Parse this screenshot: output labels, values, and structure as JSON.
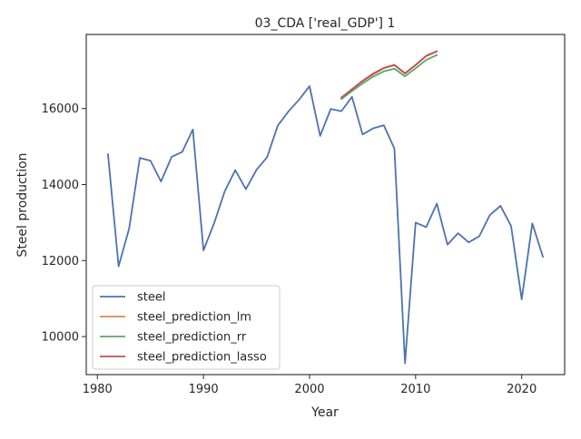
{
  "chart_data": {
    "type": "line",
    "title": "03_CDA ['real_GDP'] 1",
    "xlabel": "Year",
    "ylabel": "Steel production",
    "xlim": [
      1978.95,
      2024.05
    ],
    "ylim": [
      9000,
      17950
    ],
    "xticks": [
      1980,
      1990,
      2000,
      2010,
      2020
    ],
    "yticks": [
      10000,
      12000,
      14000,
      16000
    ],
    "grid": false,
    "legend_position": "lower-left",
    "series": [
      {
        "name": "steel",
        "color": "#4c72b0",
        "x": [
          1981,
          1982,
          1983,
          1984,
          1985,
          1986,
          1987,
          1988,
          1989,
          1990,
          1991,
          1992,
          1993,
          1994,
          1995,
          1996,
          1997,
          1998,
          1999,
          2000,
          2001,
          2002,
          2003,
          2004,
          2005,
          2006,
          2007,
          2008,
          2009,
          2010,
          2011,
          2012,
          2013,
          2014,
          2015,
          2016,
          2017,
          2018,
          2019,
          2020,
          2021,
          2022
        ],
        "y": [
          14800,
          11850,
          12850,
          14700,
          14630,
          14080,
          14730,
          14860,
          15450,
          12270,
          12980,
          13820,
          14380,
          13880,
          14390,
          14720,
          15550,
          15920,
          16230,
          16590,
          15280,
          15990,
          15930,
          16310,
          15320,
          15480,
          15560,
          14950,
          9300,
          13000,
          12880,
          13500,
          12420,
          12720,
          12480,
          12640,
          13200,
          13440,
          12910,
          10980,
          12980,
          12100
        ]
      },
      {
        "name": "steel_prediction_lm",
        "color": "#dd8452",
        "x": [
          2003,
          2004,
          2005,
          2006,
          2007,
          2008,
          2009,
          2010,
          2011,
          2012
        ],
        "y": [
          16290,
          16500,
          16720,
          16900,
          17060,
          17140,
          16920,
          17140,
          17380,
          17500
        ]
      },
      {
        "name": "steel_prediction_rr",
        "color": "#55a868",
        "x": [
          2003,
          2004,
          2005,
          2006,
          2007,
          2008,
          2009,
          2010,
          2011,
          2012
        ],
        "y": [
          16250,
          16460,
          16660,
          16840,
          16980,
          17050,
          16850,
          17060,
          17280,
          17410
        ]
      },
      {
        "name": "steel_prediction_lasso",
        "color": "#c44e52",
        "x": [
          2003,
          2004,
          2005,
          2006,
          2007,
          2008,
          2009,
          2010,
          2011,
          2012
        ],
        "y": [
          16290,
          16510,
          16730,
          16920,
          17070,
          17150,
          16930,
          17150,
          17390,
          17510
        ]
      }
    ]
  }
}
